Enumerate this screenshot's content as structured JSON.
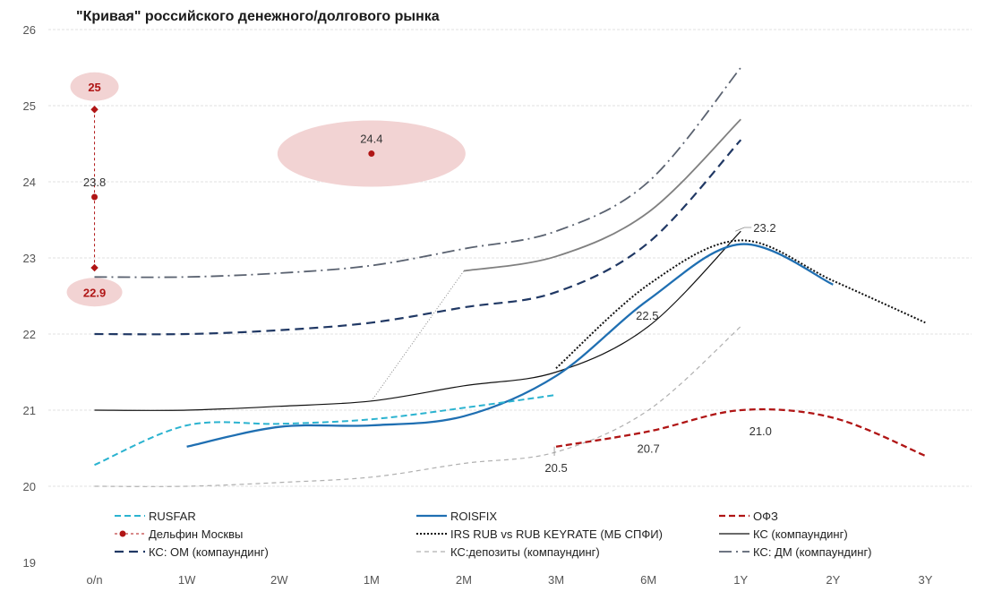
{
  "chart_data": {
    "type": "line",
    "title": "\"Кривая\" российского денежного/долгового рынка",
    "xlabel": "",
    "ylabel": "",
    "categories": [
      "o/n",
      "1W",
      "2W",
      "1M",
      "2M",
      "3M",
      "6M",
      "1Y",
      "2Y",
      "3Y"
    ],
    "ylim": [
      19,
      26
    ],
    "yticks": [
      19,
      20,
      21,
      22,
      23,
      24,
      25,
      26
    ],
    "grid": true,
    "series": [
      {
        "name": "КС: ДМ (компаундинг)",
        "color": "#5a6270",
        "dash": "14,5,2,5",
        "width": 1.8,
        "points": [
          [
            0,
            22.75
          ],
          [
            1,
            22.75
          ],
          [
            2,
            22.8
          ],
          [
            3,
            22.9
          ],
          [
            4,
            23.12
          ],
          [
            5,
            23.35
          ],
          [
            6,
            24.0
          ],
          [
            7,
            25.5
          ]
        ]
      },
      {
        "name": "",
        "color": "#808080",
        "dash": "",
        "width": 1.8,
        "points": [
          [
            4,
            22.83
          ],
          [
            5,
            23.02
          ],
          [
            6,
            23.6
          ],
          [
            7,
            24.82
          ]
        ]
      },
      {
        "name": "",
        "color": "#7a7a7a",
        "dash": "1,2",
        "width": 0.9,
        "points": [
          [
            3,
            21.12
          ],
          [
            4,
            22.83
          ]
        ]
      },
      {
        "name": "КС: ОМ (компаундинг)",
        "color": "#203864",
        "dash": "10,6",
        "width": 2.2,
        "points": [
          [
            0,
            22.0
          ],
          [
            1,
            22.0
          ],
          [
            2,
            22.05
          ],
          [
            3,
            22.15
          ],
          [
            4,
            22.35
          ],
          [
            5,
            22.55
          ],
          [
            6,
            23.2
          ],
          [
            7,
            24.55
          ]
        ]
      },
      {
        "name": "КС:депозиты (компаундинг)",
        "color": "#b0b0b0",
        "dash": "5,4",
        "width": 1.2,
        "points": [
          [
            0,
            20.0
          ],
          [
            1,
            20.0
          ],
          [
            2,
            20.05
          ],
          [
            3,
            20.12
          ],
          [
            4,
            20.3
          ],
          [
            5,
            20.45
          ],
          [
            6,
            21.0
          ],
          [
            7,
            22.1
          ]
        ]
      },
      {
        "name": "КС (компаундинг)",
        "color": "#111111",
        "dash": "",
        "width": 1.2,
        "points": [
          [
            0,
            21.0
          ],
          [
            1,
            21.0
          ],
          [
            2,
            21.05
          ],
          [
            3,
            21.12
          ],
          [
            4,
            21.32
          ],
          [
            5,
            21.5
          ],
          [
            6,
            22.1
          ],
          [
            7,
            23.35
          ]
        ]
      },
      {
        "name": "IRS RUB vs RUB KEYRATE (МБ СПФИ)",
        "color": "#111111",
        "dash": "2,2",
        "width": 2,
        "points": [
          [
            5,
            21.55
          ],
          [
            6,
            22.65
          ],
          [
            7,
            23.23
          ],
          [
            8,
            22.7
          ],
          [
            9,
            22.15
          ]
        ]
      },
      {
        "name": "ROISFIX",
        "color": "#1f6fb2",
        "dash": "",
        "width": 2.3,
        "points": [
          [
            1,
            20.52
          ],
          [
            2,
            20.78
          ],
          [
            3,
            20.8
          ],
          [
            4,
            20.92
          ],
          [
            5,
            21.45
          ],
          [
            6,
            22.45
          ],
          [
            7,
            23.18
          ],
          [
            8,
            22.65
          ]
        ]
      },
      {
        "name": "RUSFAR",
        "color": "#2bb3d0",
        "dash": "7,4",
        "width": 2,
        "points": [
          [
            0,
            20.28
          ],
          [
            1,
            20.8
          ],
          [
            2,
            20.82
          ],
          [
            3,
            20.88
          ],
          [
            4,
            21.03
          ],
          [
            5,
            21.2
          ]
        ]
      },
      {
        "name": "ОФЗ",
        "color": "#b01515",
        "dash": "7,4",
        "width": 2.3,
        "points": [
          [
            5,
            20.52
          ],
          [
            6,
            20.72
          ],
          [
            7,
            21.0
          ],
          [
            8,
            20.9
          ],
          [
            9,
            20.4
          ]
        ]
      }
    ],
    "delphin": {
      "name": "Дельфин Москвы",
      "color": "#b01515",
      "values": [
        24.95,
        23.8,
        22.87
      ],
      "x": 0
    },
    "rate_point": {
      "x": 3,
      "y": 24.37,
      "label": "24.4"
    },
    "data_labels": {
      "top": "25",
      "mid": "23.8",
      "bottom": "22.9",
      "irs_1y": "23.2",
      "roisfix_6m": "22.5",
      "ofz_3m": "20.5",
      "ofz_6m": "20.7",
      "ofz_1y": "21.0"
    },
    "legend": {
      "placement": "bottom",
      "items": [
        {
          "label": "RUSFAR",
          "color": "#2bb3d0",
          "dash": "7,4",
          "width": 2,
          "marker": false
        },
        {
          "label": "ROISFIX",
          "color": "#1f6fb2",
          "dash": "",
          "width": 2.3,
          "marker": false
        },
        {
          "label": "ОФЗ",
          "color": "#b01515",
          "dash": "7,4",
          "width": 2.3,
          "marker": false
        },
        {
          "label": "Дельфин Москвы",
          "color": "#b01515",
          "dash": "3,3",
          "width": 1,
          "marker": true
        },
        {
          "label": "IRS RUB vs RUB KEYRATE (МБ СПФИ)",
          "color": "#111111",
          "dash": "2,2",
          "width": 2,
          "marker": false
        },
        {
          "label": "КС (компаундинг)",
          "color": "#111111",
          "dash": "",
          "width": 1.2,
          "marker": false
        },
        {
          "label": "КС: ОМ (компаундинг)",
          "color": "#203864",
          "dash": "10,6",
          "width": 2.2,
          "marker": false
        },
        {
          "label": "КС:депозиты (компаундинг)",
          "color": "#b0b0b0",
          "dash": "5,4",
          "width": 1.2,
          "marker": false
        },
        {
          "label": "КС: ДМ (компаундинг)",
          "color": "#5a6270",
          "dash": "14,5,2,5",
          "width": 1.8,
          "marker": false
        }
      ]
    }
  }
}
